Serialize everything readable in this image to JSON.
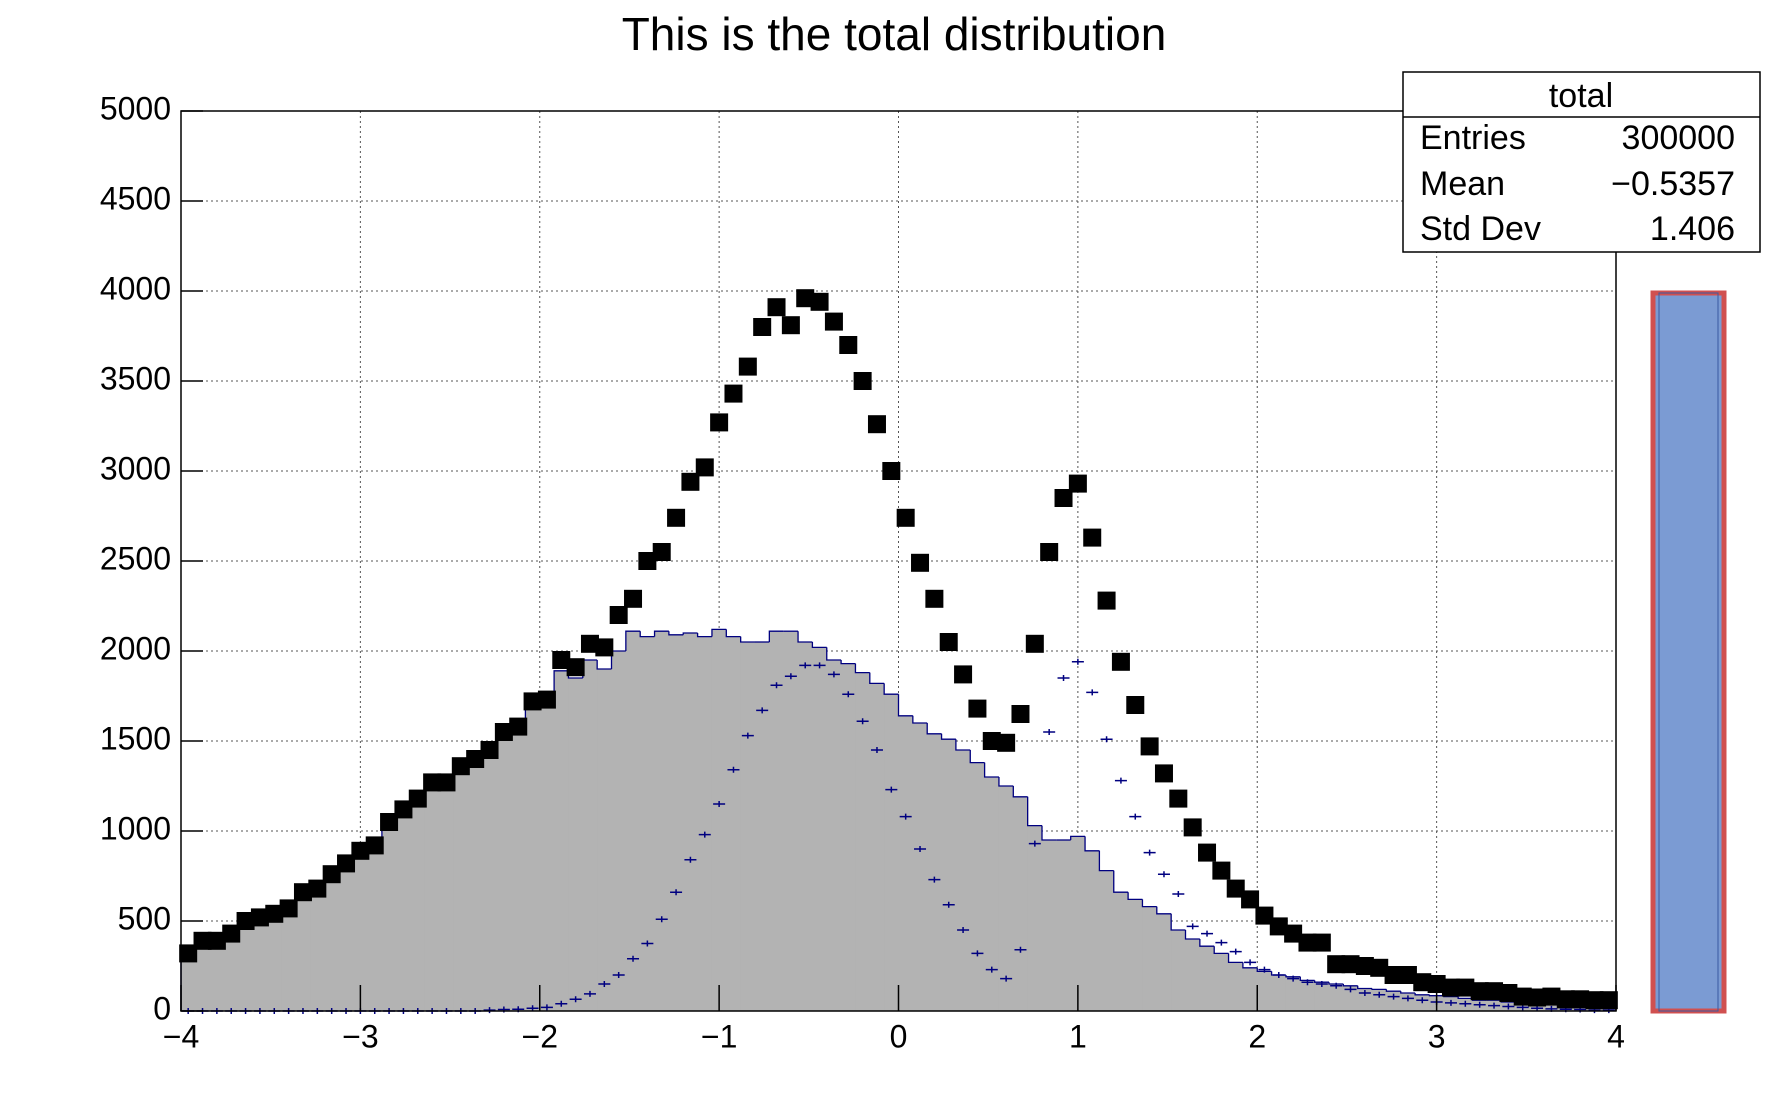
{
  "chart_data": {
    "type": "histogram",
    "title": "This is the total distribution",
    "bins": [
      -4,
      -3.92,
      -3.84,
      -3.76,
      -3.68,
      -3.6,
      -3.52,
      -3.44,
      -3.36,
      -3.28,
      -3.2,
      -3.12,
      -3.04,
      -2.96,
      -2.88,
      -2.8,
      -2.72,
      -2.64,
      -2.56,
      -2.48,
      -2.4,
      -2.32,
      -2.24,
      -2.16,
      -2.08,
      -2,
      -1.92,
      -1.84,
      -1.76,
      -1.68,
      -1.6,
      -1.52,
      -1.44,
      -1.36,
      -1.28,
      -1.2,
      -1.12,
      -1.04,
      -0.96,
      -0.88,
      -0.8,
      -0.72,
      -0.64,
      -0.56,
      -0.48,
      -0.4,
      -0.32,
      -0.24,
      -0.16,
      -0.08,
      0,
      0.08,
      0.16,
      0.24,
      0.32,
      0.4,
      0.48,
      0.56,
      0.64,
      0.72,
      0.8,
      0.88,
      0.96,
      1.04,
      1.12,
      1.2,
      1.28,
      1.36,
      1.44,
      1.52,
      1.6,
      1.68,
      1.76,
      1.84,
      1.92,
      2,
      2.08,
      2.16,
      2.24,
      2.32,
      2.4,
      2.48,
      2.56,
      2.64,
      2.72,
      2.8,
      2.88,
      2.96,
      3.04,
      3.12,
      3.2,
      3.28,
      3.36,
      3.44,
      3.52,
      3.6,
      3.68,
      3.76,
      3.84,
      3.92,
      4
    ],
    "series": [
      {
        "style": "filled",
        "color": "#b3b3b3",
        "edge_color": "#000080",
        "values": [
          320,
          380,
          380,
          420,
          500,
          510,
          530,
          550,
          640,
          670,
          740,
          810,
          870,
          900,
          1020,
          1100,
          1170,
          1250,
          1260,
          1330,
          1390,
          1440,
          1530,
          1560,
          1700,
          1720,
          1890,
          1850,
          1950,
          1900,
          2000,
          2110,
          2080,
          2110,
          2090,
          2100,
          2080,
          2120,
          2080,
          2050,
          2050,
          2110,
          2110,
          2050,
          2020,
          1950,
          1930,
          1880,
          1820,
          1760,
          1640,
          1600,
          1540,
          1510,
          1450,
          1380,
          1300,
          1250,
          1190,
          1030,
          950,
          950,
          970,
          890,
          780,
          660,
          620,
          580,
          540,
          450,
          400,
          360,
          320,
          270,
          240,
          220,
          200,
          190,
          170,
          160,
          150,
          140,
          125,
          120,
          110,
          100,
          90,
          85,
          80,
          70,
          60,
          60,
          50,
          45,
          40,
          35,
          30,
          30,
          25,
          25
        ]
      },
      {
        "style": "crosses",
        "color": "#000080",
        "values": [
          0,
          0,
          0,
          0,
          0,
          0,
          0,
          0,
          0,
          0,
          0,
          0,
          0,
          0,
          0,
          0,
          0,
          0,
          0,
          0,
          0,
          5,
          8,
          10,
          15,
          20,
          40,
          65,
          95,
          150,
          200,
          290,
          375,
          510,
          660,
          840,
          980,
          1150,
          1340,
          1530,
          1670,
          1810,
          1860,
          1920,
          1920,
          1870,
          1760,
          1610,
          1450,
          1230,
          1080,
          900,
          730,
          590,
          450,
          320,
          230,
          180,
          340,
          930,
          1550,
          1850,
          1940,
          1770,
          1510,
          1280,
          1080,
          880,
          760,
          650,
          470,
          430,
          380,
          330,
          270,
          230,
          200,
          180,
          160,
          150,
          140,
          120,
          100,
          90,
          80,
          70,
          60,
          50,
          45,
          40,
          35,
          30,
          25,
          20,
          15,
          12,
          10,
          8,
          5,
          5
        ]
      },
      {
        "name": "total",
        "style": "markers",
        "color": "#000000",
        "values": [
          320,
          390,
          390,
          430,
          500,
          520,
          540,
          570,
          660,
          680,
          760,
          820,
          890,
          920,
          1050,
          1120,
          1180,
          1270,
          1270,
          1360,
          1400,
          1450,
          1550,
          1580,
          1720,
          1730,
          1950,
          1910,
          2040,
          2020,
          2200,
          2290,
          2500,
          2550,
          2740,
          2940,
          3020,
          3270,
          3430,
          3580,
          3800,
          3910,
          3810,
          3960,
          3940,
          3830,
          3700,
          3500,
          3260,
          3000,
          2740,
          2490,
          2290,
          2050,
          1870,
          1680,
          1500,
          1490,
          1650,
          2040,
          2550,
          2850,
          2930,
          2630,
          2280,
          1940,
          1700,
          1470,
          1320,
          1180,
          1020,
          880,
          780,
          680,
          620,
          530,
          470,
          430,
          380,
          380,
          260,
          260,
          250,
          240,
          200,
          200,
          160,
          150,
          130,
          130,
          110,
          110,
          100,
          80,
          75,
          80,
          65,
          65,
          60,
          60
        ]
      }
    ],
    "xlim": [
      -4,
      4
    ],
    "ylim": [
      0,
      5000
    ],
    "xticks": [
      {
        "value": -4,
        "label": "−4"
      },
      {
        "value": -3,
        "label": "−3"
      },
      {
        "value": -2,
        "label": "−2"
      },
      {
        "value": -1,
        "label": "−1"
      },
      0,
      1,
      2,
      3,
      4
    ],
    "yticks": [
      0,
      500,
      1000,
      1500,
      2000,
      2500,
      3000,
      3500,
      4000,
      4500,
      5000
    ],
    "grid": true,
    "stats": {
      "title": "total",
      "entries": {
        "label": "Entries",
        "value": 300000
      },
      "mean": {
        "label": "Mean",
        "value": -0.5357,
        "value_label": "−0.5357"
      },
      "std": {
        "label": "Std Dev",
        "value": 1.406
      }
    }
  }
}
